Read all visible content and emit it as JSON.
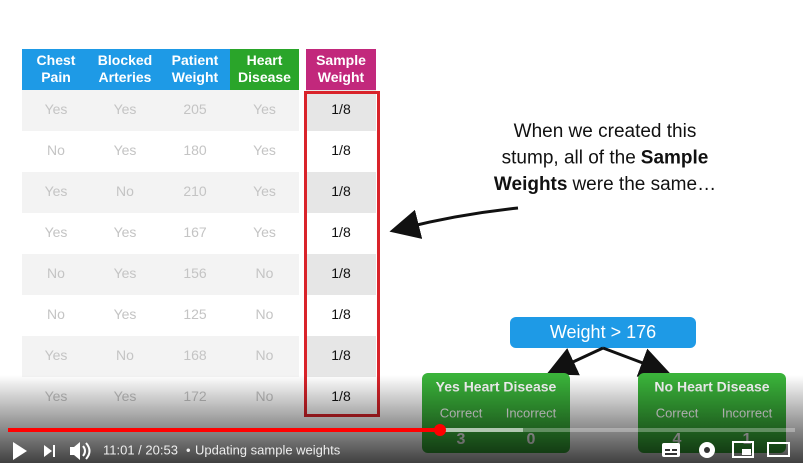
{
  "table": {
    "headers": [
      "Chest Pain",
      "Blocked Arteries",
      "Patient Weight",
      "Heart Disease",
      "Sample Weight"
    ],
    "rows": [
      [
        "Yes",
        "Yes",
        205,
        "Yes",
        "1/8"
      ],
      [
        "No",
        "Yes",
        180,
        "Yes",
        "1/8"
      ],
      [
        "Yes",
        "No",
        210,
        "Yes",
        "1/8"
      ],
      [
        "Yes",
        "Yes",
        167,
        "Yes",
        "1/8"
      ],
      [
        "No",
        "Yes",
        156,
        "No",
        "1/8"
      ],
      [
        "No",
        "Yes",
        125,
        "No",
        "1/8"
      ],
      [
        "Yes",
        "No",
        168,
        "No",
        "1/8"
      ],
      [
        "Yes",
        "Yes",
        172,
        "No",
        "1/8"
      ]
    ]
  },
  "annotation": {
    "lines": [
      [
        "When we created this"
      ],
      [
        "stump, all of the",
        "Sample"
      ],
      [
        "Weights",
        "were the same…"
      ]
    ]
  },
  "tree": {
    "root": "Weight > 176",
    "leaves": [
      {
        "label": "Yes Heart Disease",
        "correct_label": "Correct",
        "incorrect_label": "Incorrect",
        "correct": 3,
        "incorrect": 0
      },
      {
        "label": "No Heart Disease",
        "correct_label": "Correct",
        "incorrect_label": "Incorrect",
        "correct": 4,
        "incorrect": 1
      }
    ]
  },
  "player": {
    "time": "11:01 / 20:53",
    "separator": "•",
    "video_title": "Updating sample weights"
  }
}
